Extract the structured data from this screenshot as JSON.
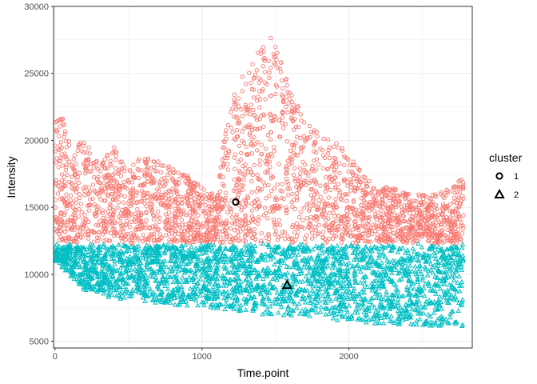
{
  "chart_data": {
    "type": "scatter",
    "title": "",
    "xlabel": "Time.point",
    "ylabel": "Intensity",
    "xlim": [
      -10,
      2840
    ],
    "ylim": [
      4500,
      30000
    ],
    "x_ticks": [
      0,
      1000,
      2000
    ],
    "x_tick_labels": [
      "0",
      "1000",
      "2000"
    ],
    "y_ticks": [
      5000,
      10000,
      15000,
      20000,
      25000,
      30000
    ],
    "y_tick_labels": [
      "5000",
      "10000",
      "15000",
      "20000",
      "25000",
      "30000"
    ],
    "grid": true,
    "legend": {
      "title": "cluster",
      "placement": "right",
      "entries": [
        {
          "label": "1",
          "shape": "circle",
          "color": "#F8766D"
        },
        {
          "label": "2",
          "shape": "triangle",
          "color": "#00BFC4"
        }
      ]
    },
    "series": [
      {
        "cluster": "1",
        "shape": "circle",
        "color": "#F8766D",
        "x_range": [
          0,
          2780
        ],
        "y_floor": 12300,
        "upper_envelope": [
          [
            0,
            23000
          ],
          [
            60,
            21500
          ],
          [
            120,
            19500
          ],
          [
            200,
            20000
          ],
          [
            300,
            18500
          ],
          [
            400,
            19500
          ],
          [
            500,
            18000
          ],
          [
            600,
            19000
          ],
          [
            700,
            18500
          ],
          [
            800,
            18000
          ],
          [
            900,
            17500
          ],
          [
            1000,
            16500
          ],
          [
            1100,
            16000
          ],
          [
            1150,
            20000
          ],
          [
            1200,
            23000
          ],
          [
            1250,
            24500
          ],
          [
            1300,
            25000
          ],
          [
            1350,
            26000
          ],
          [
            1400,
            27000
          ],
          [
            1450,
            28000
          ],
          [
            1500,
            27500
          ],
          [
            1550,
            25500
          ],
          [
            1600,
            24000
          ],
          [
            1700,
            21500
          ],
          [
            1800,
            20500
          ],
          [
            1900,
            20000
          ],
          [
            2000,
            19000
          ],
          [
            2100,
            17500
          ],
          [
            2200,
            16500
          ],
          [
            2300,
            16500
          ],
          [
            2400,
            16000
          ],
          [
            2500,
            16000
          ],
          [
            2600,
            16000
          ],
          [
            2700,
            16500
          ],
          [
            2780,
            17500
          ]
        ],
        "centroid": [
          1230,
          15400
        ]
      },
      {
        "cluster": "2",
        "shape": "triangle",
        "color": "#00BFC4",
        "x_range": [
          0,
          2780
        ],
        "y_ceiling": 12300,
        "lower_envelope": [
          [
            0,
            11000
          ],
          [
            200,
            8800
          ],
          [
            400,
            8200
          ],
          [
            600,
            7900
          ],
          [
            800,
            7700
          ],
          [
            1000,
            7600
          ],
          [
            1200,
            7300
          ],
          [
            1400,
            7000
          ],
          [
            1600,
            6900
          ],
          [
            1800,
            6800
          ],
          [
            2000,
            6300
          ],
          [
            2200,
            6300
          ],
          [
            2400,
            6200
          ],
          [
            2600,
            6100
          ],
          [
            2780,
            6100
          ]
        ],
        "centroid": [
          1580,
          9200
        ]
      }
    ]
  }
}
